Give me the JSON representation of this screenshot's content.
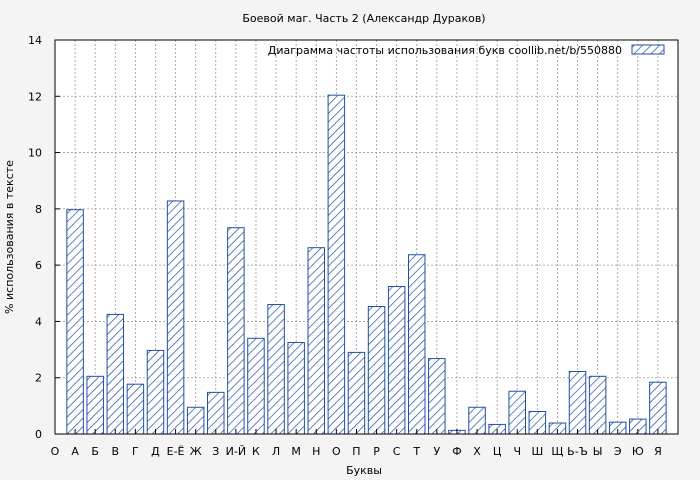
{
  "chart_data": {
    "type": "bar",
    "title": "Боевой маг. Часть 2 (Александр Дураков)",
    "xlabel": "Буквы",
    "ylabel": "% использования в тексте",
    "legend": {
      "label": "Диаграмма частоты использования букв  coollib.net/b/550880",
      "position": "top-right"
    },
    "ylim": [
      0,
      14
    ],
    "yticks": [
      "0",
      "2",
      "4",
      "6",
      "8",
      "10",
      "12",
      "14"
    ],
    "grid": true,
    "bar_color": "#1f4fa3",
    "categories": [
      "О",
      "А",
      "Б",
      "В",
      "Г",
      "Д",
      "Е-Ё",
      "Ж",
      "З",
      "И-Й",
      "К",
      "Л",
      "М",
      "Н",
      "О",
      "П",
      "Р",
      "С",
      "Т",
      "У",
      "Ф",
      "Х",
      "Ц",
      "Ч",
      "Ш",
      "Щ",
      "Ь-Ъ",
      "Ы",
      "Э",
      "Ю",
      "Я"
    ],
    "values": [
      null,
      7.97,
      2.05,
      4.25,
      1.77,
      2.97,
      8.28,
      0.95,
      1.48,
      7.33,
      3.4,
      4.6,
      3.25,
      6.62,
      12.04,
      2.9,
      4.53,
      5.24,
      6.37,
      2.68,
      0.13,
      0.95,
      0.34,
      1.52,
      0.8,
      0.39,
      2.22,
      2.05,
      0.42,
      0.53,
      1.84
    ]
  }
}
